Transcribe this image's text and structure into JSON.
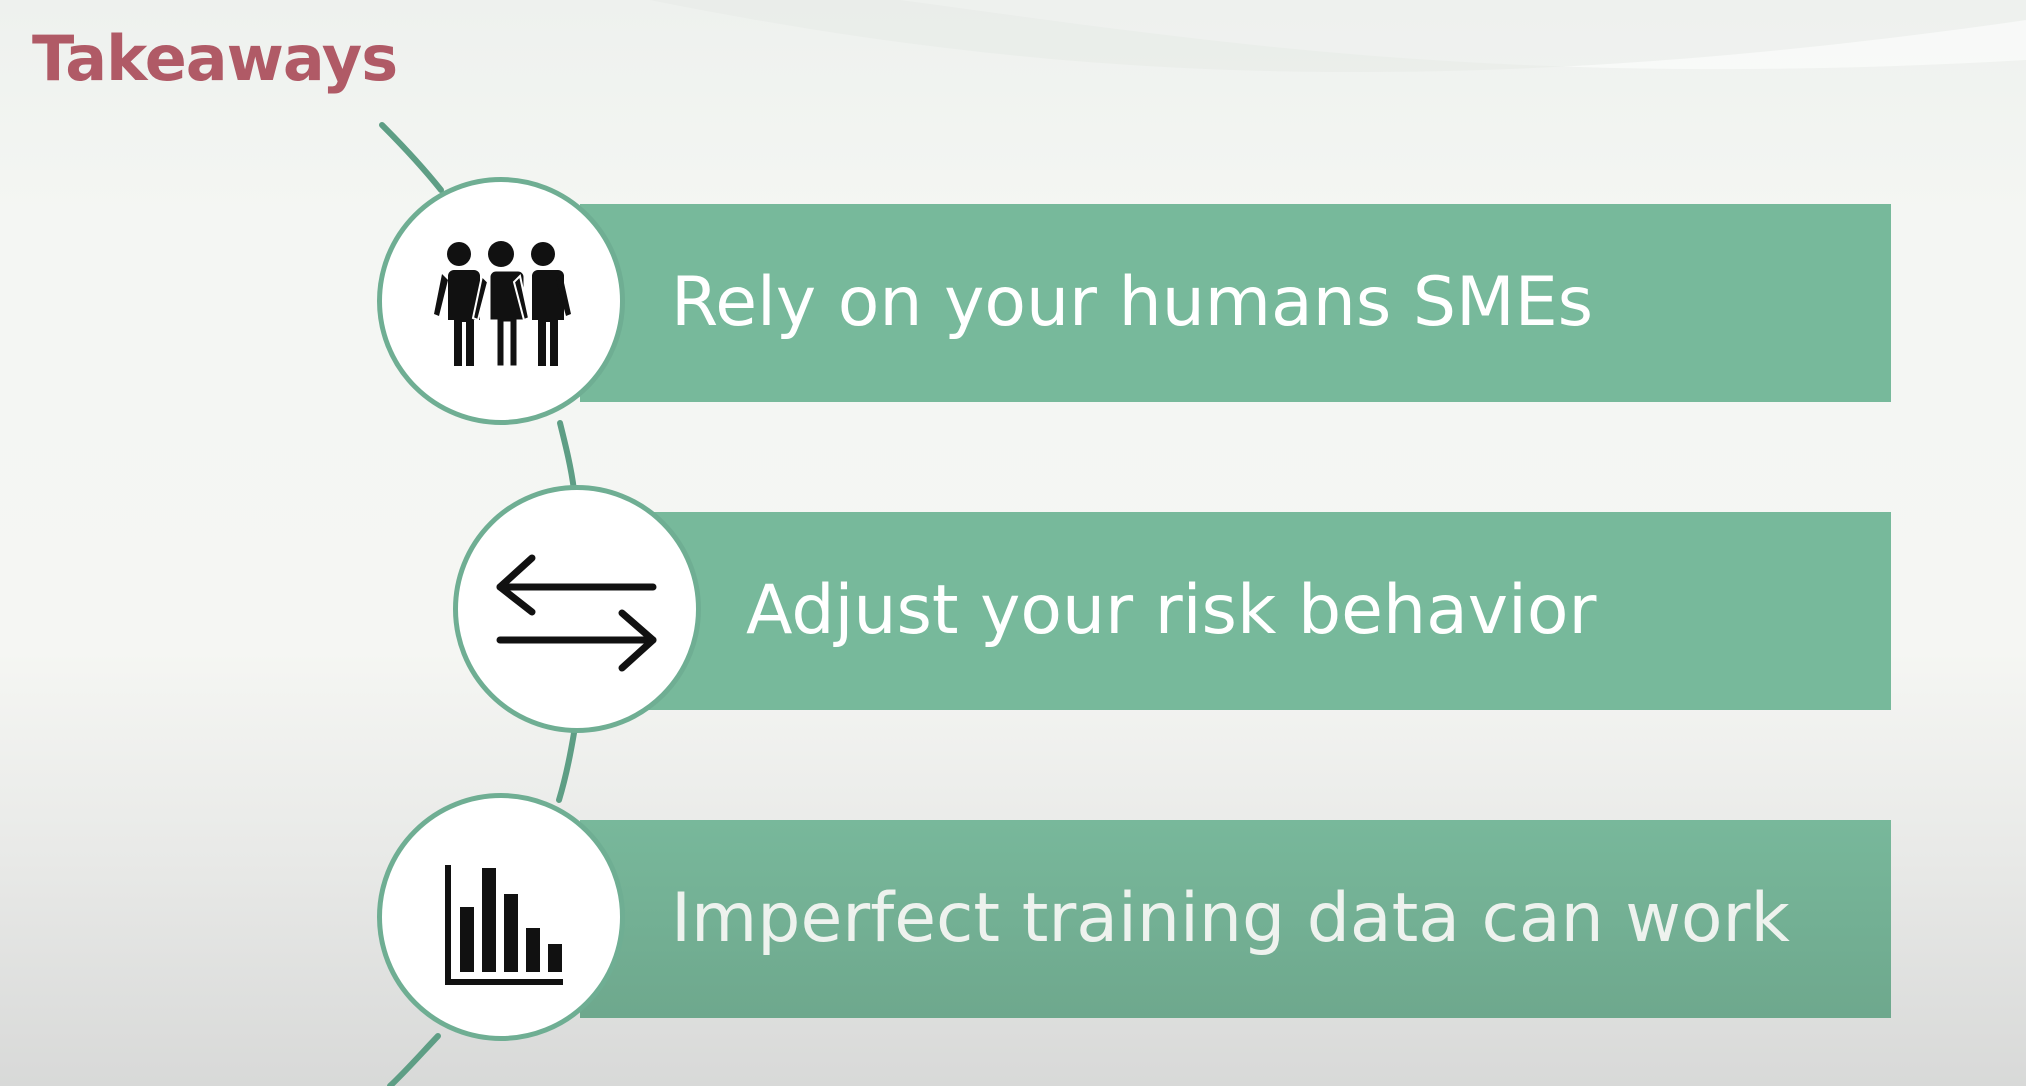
{
  "slide": {
    "title": "Takeaways",
    "items": [
      {
        "label": "Rely on your humans SMEs",
        "icon": "people-group-icon"
      },
      {
        "label": "Adjust your risk behavior",
        "icon": "swap-arrows-icon"
      },
      {
        "label": "Imperfect training data can work",
        "icon": "bar-chart-icon"
      }
    ]
  },
  "colors": {
    "title": "#b05a66",
    "banner": "#77b99b",
    "circle_border": "#6fae93",
    "connector": "#5e9e85"
  }
}
